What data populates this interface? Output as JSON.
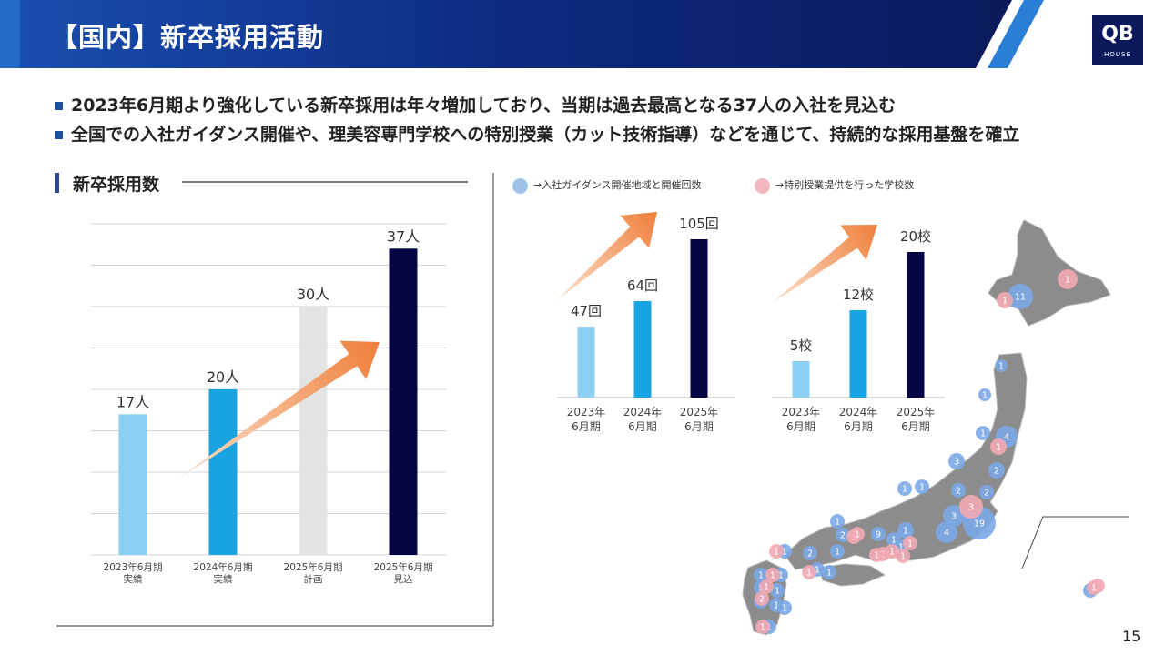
{
  "header": {
    "title": "【国内】新卒採用活動",
    "logo_main": "QB",
    "logo_sub": "HOUSE"
  },
  "bullets": [
    "2023年6月期より強化している新卒採用は年々増加しており、当期は過去最高となる37人の入社を見込む",
    "全国での入社ガイダンス開催や、理美容専門学校への特別授業（カット技術指導）などを通じて、持続的な採用基盤を確立"
  ],
  "section": {
    "title": "新卒採用数"
  },
  "legend": {
    "guidance": "→入社ガイダンス開催地域と開催回数",
    "schools": "→特別授業提供を行った学校数",
    "guidance_color": "#9fc3e8",
    "schools_color": "#f2b8bf"
  },
  "page_number": "15",
  "colors": {
    "light_blue": "#8bd0f2",
    "blue": "#18a4e0",
    "gray": "#e3e3e3",
    "navy": "#060645",
    "arrow": "#ef7f3a",
    "header_navy": "#0b1c66",
    "map_land": "#8c8c8c"
  },
  "chart_data": [
    {
      "type": "bar",
      "id": "recruits",
      "categories": [
        [
          "2023年6月期",
          "実績"
        ],
        [
          "2024年6月期",
          "実績"
        ],
        [
          "2025年6月期",
          "計画"
        ],
        [
          "2025年6月期",
          "見込"
        ]
      ],
      "values": [
        17,
        20,
        30,
        37
      ],
      "value_labels": [
        "17人",
        "20人",
        "30人",
        "37人"
      ],
      "bar_colors": [
        "#8bd0f2",
        "#18a4e0",
        "#e3e3e3",
        "#060645"
      ],
      "ylim": [
        0,
        40
      ],
      "grid": true,
      "trend_arrow": true
    },
    {
      "type": "bar",
      "id": "guidance",
      "categories": [
        [
          "2023年",
          "6月期"
        ],
        [
          "2024年",
          "6月期"
        ],
        [
          "2025年",
          "6月期"
        ]
      ],
      "values": [
        47,
        64,
        105
      ],
      "value_labels": [
        "47回",
        "64回",
        "105回"
      ],
      "bar_colors": [
        "#8bd0f2",
        "#18a4e0",
        "#060645"
      ],
      "ylim": [
        0,
        105
      ],
      "trend_arrow": true
    },
    {
      "type": "bar",
      "id": "schools",
      "categories": [
        [
          "2023年",
          "6月期"
        ],
        [
          "2024年",
          "6月期"
        ],
        [
          "2025年",
          "6月期"
        ]
      ],
      "values": [
        5,
        12,
        20
      ],
      "value_labels": [
        "5校",
        "12校",
        "20校"
      ],
      "bar_colors": [
        "#8bd0f2",
        "#18a4e0",
        "#060645"
      ],
      "ylim": [
        0,
        20
      ],
      "trend_arrow": true
    }
  ],
  "map": {
    "blue_markers": [
      "11",
      "1",
      "1",
      "1",
      "4",
      "3",
      "2",
      "2",
      "2",
      "3",
      "19",
      "4",
      "1",
      "1",
      "1",
      "2",
      "9",
      "1",
      "1",
      "1",
      "1",
      "2",
      "1",
      "1",
      "1",
      "1",
      "1",
      "1",
      "1",
      "1",
      "1",
      "3",
      "1",
      "1"
    ],
    "pink_markers": [
      "1",
      "1",
      "1",
      "3",
      "2",
      "1",
      "1",
      "1",
      "1",
      "1",
      "1",
      "1",
      "1",
      "1",
      "1",
      "2",
      "1",
      "1",
      "1"
    ]
  }
}
